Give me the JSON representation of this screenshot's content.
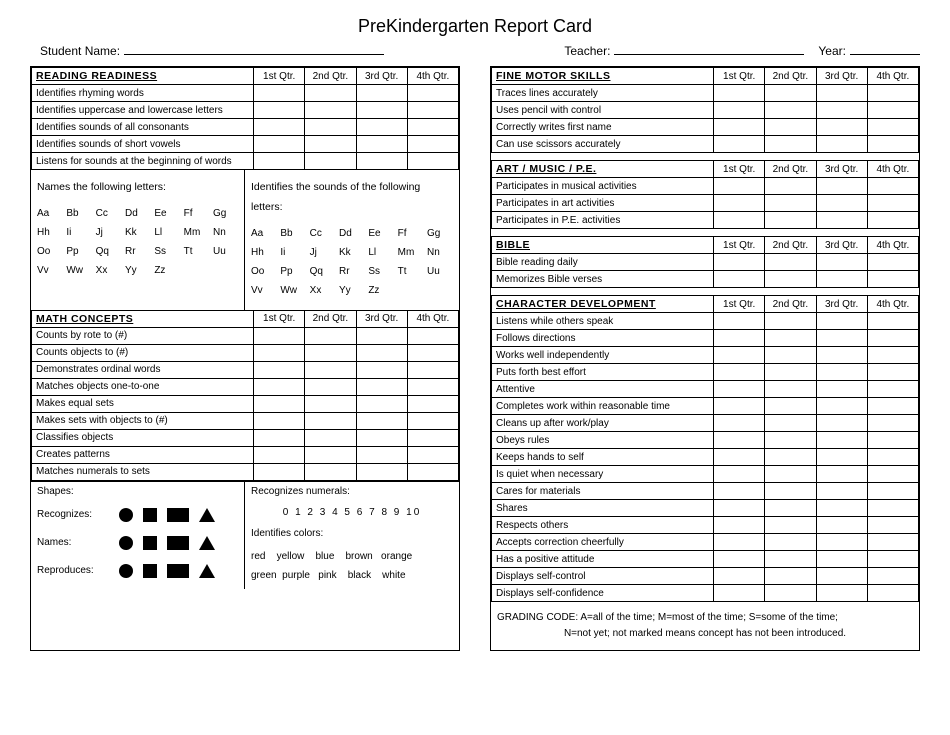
{
  "title": "PreKindergarten Report Card",
  "header": {
    "student_label": "Student Name:",
    "teacher_label": "Teacher:",
    "year_label": "Year:"
  },
  "qtrs": [
    "1st Qtr.",
    "2nd Qtr.",
    "3rd Qtr.",
    "4th Qtr."
  ],
  "left": {
    "reading": {
      "title": "READING READINESS",
      "rows": [
        "Identifies rhyming words",
        "Identifies uppercase and lowercase letters",
        "Identifies sounds of all consonants",
        "Identifies sounds of short vowels",
        "Listens for sounds at the beginning of words"
      ]
    },
    "letters": {
      "names_title": "Names the following letters:",
      "sounds_title": "Identifies the sounds of the following letters:",
      "rows": [
        [
          "Aa",
          "Bb",
          "Cc",
          "Dd",
          "Ee",
          "Ff",
          "Gg"
        ],
        [
          "Hh",
          "Ii",
          "Jj",
          "Kk",
          "Ll",
          "Mm",
          "Nn"
        ],
        [
          "Oo",
          "Pp",
          "Qq",
          "Rr",
          "Ss",
          "Tt",
          "Uu"
        ],
        [
          "Vv",
          "Ww",
          "Xx",
          "Yy",
          "Zz",
          "",
          ""
        ]
      ]
    },
    "math": {
      "title": "MATH CONCEPTS",
      "rows": [
        "Counts by rote to (#)",
        "Counts objects to (#)",
        "Demonstrates ordinal words",
        "Matches objects one-to-one",
        "Makes equal sets",
        "Makes sets with objects to (#)",
        "Classifies objects",
        "Creates patterns",
        "Matches numerals to sets"
      ]
    },
    "shapes": {
      "title": "Shapes:",
      "rows": [
        "Recognizes:",
        "Names:",
        "Reproduces:"
      ]
    },
    "numerals": {
      "title": "Recognizes numerals:",
      "list": "0  1  2  3  4  5  6  7  8  9  10"
    },
    "colors": {
      "title": "Identifies colors:",
      "line1": "red    yellow    blue    brown   orange",
      "line2": "green  purple   pink    black    white"
    }
  },
  "right": {
    "fine": {
      "title": "FINE MOTOR SKILLS",
      "rows": [
        "Traces lines accurately",
        "Uses pencil with control",
        "Correctly writes first name",
        "Can use scissors accurately"
      ]
    },
    "art": {
      "title": "ART / MUSIC / P.E.",
      "rows": [
        "Participates in musical activities",
        "Participates in art activities",
        "Participates in P.E. activities"
      ]
    },
    "bible": {
      "title": "BIBLE",
      "rows": [
        "Bible reading daily",
        "Memorizes Bible verses"
      ]
    },
    "char": {
      "title": "CHARACTER DEVELOPMENT",
      "rows": [
        "Listens while others speak",
        "Follows directions",
        "Works well independently",
        "Puts forth best effort",
        "Attentive",
        "Completes work within reasonable time",
        "Cleans up after work/play",
        "Obeys rules",
        "Keeps hands to self",
        "Is quiet when necessary",
        "Cares for materials",
        "Shares",
        "Respects others",
        "Accepts correction cheerfully",
        "Has a positive attitude",
        "Displays self-control",
        "Displays self-confidence"
      ]
    },
    "grading": {
      "line1": "GRADING CODE: A=all of the time; M=most of the time; S=some of the time;",
      "line2": "N=not yet; not marked means concept has not been introduced."
    }
  }
}
